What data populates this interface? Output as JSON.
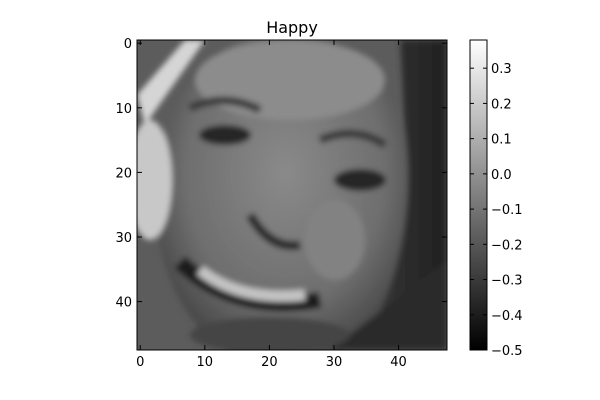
{
  "chart_data": {
    "type": "heatmap",
    "title": "Happy",
    "xlabel": "",
    "ylabel": "",
    "colormap": "gray",
    "image_size": [
      48,
      48
    ],
    "xlim": [
      -0.5,
      47.5
    ],
    "ylim": [
      47.5,
      -0.5
    ],
    "x_ticks": [
      0,
      10,
      20,
      30,
      40
    ],
    "y_ticks": [
      0,
      10,
      20,
      30,
      40
    ],
    "x_tick_labels": [
      "0",
      "10",
      "20",
      "30",
      "40"
    ],
    "y_tick_labels": [
      "0",
      "10",
      "20",
      "30",
      "40"
    ],
    "colorbar": {
      "min": -0.5,
      "max": 0.38,
      "ticks": [
        0.3,
        0.2,
        0.1,
        0.0,
        -0.1,
        -0.2,
        -0.3,
        -0.4,
        -0.5
      ],
      "tick_labels": [
        "0.3",
        "0.2",
        "0.1",
        "0.0",
        "−0.1",
        "−0.2",
        "−0.3",
        "−0.4",
        "−0.5"
      ]
    },
    "grid": false,
    "legend": "none"
  }
}
